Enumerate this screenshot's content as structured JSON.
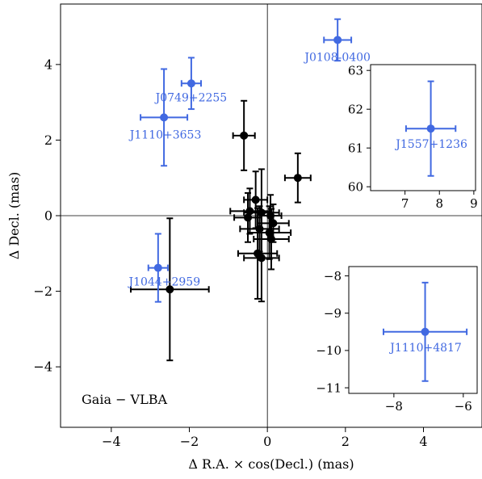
{
  "chart_data": [
    {
      "type": "scatter",
      "panel": "main",
      "xlabel": "Δ R.A. × cos(Decl.) (mas)",
      "ylabel": "Δ Decl. (mas)",
      "xlim": [
        -5.3,
        5.5
      ],
      "ylim": [
        -5.6,
        5.6
      ],
      "xticks": [
        -4,
        -2,
        0,
        2,
        4
      ],
      "yticks": [
        -4,
        -2,
        0,
        2,
        4
      ],
      "annotation": "Gaia − VLBA",
      "reference_lines": {
        "x": 0,
        "y": 0
      },
      "colors": {
        "highlight": "#4169e1",
        "default": "#000000"
      },
      "black_points": [
        {
          "x": -2.5,
          "y": -1.95,
          "xerr": 1.0,
          "yerr": 1.88
        },
        {
          "x": -0.6,
          "y": 2.12,
          "xerr": 0.28,
          "yerr": 0.92
        },
        {
          "x": 0.78,
          "y": 1.0,
          "xerr": 0.33,
          "yerr": 0.65
        },
        {
          "x": -0.3,
          "y": 0.42,
          "xerr": 0.3,
          "yerr": 0.75
        },
        {
          "x": -0.45,
          "y": 0.12,
          "xerr": 0.5,
          "yerr": 0.6
        },
        {
          "x": -0.15,
          "y": 0.08,
          "xerr": 0.45,
          "yerr": 1.15
        },
        {
          "x": 0.08,
          "y": 0.0,
          "xerr": 0.28,
          "yerr": 0.55
        },
        {
          "x": -0.5,
          "y": -0.05,
          "xerr": 0.35,
          "yerr": 0.65
        },
        {
          "x": 0.15,
          "y": -0.2,
          "xerr": 0.4,
          "yerr": 0.5
        },
        {
          "x": -0.2,
          "y": -0.35,
          "xerr": 0.5,
          "yerr": 0.6
        },
        {
          "x": 0.05,
          "y": -0.45,
          "xerr": 0.55,
          "yerr": 0.7
        },
        {
          "x": 0.1,
          "y": -0.62,
          "xerr": 0.45,
          "yerr": 0.8
        },
        {
          "x": -0.25,
          "y": -1.0,
          "xerr": 0.5,
          "yerr": 1.2
        },
        {
          "x": -0.15,
          "y": -1.12,
          "xerr": 0.45,
          "yerr": 1.15
        }
      ],
      "labeled_points": [
        {
          "label": "J0108-0400",
          "x": 1.8,
          "y": 4.65,
          "xerr": 0.35,
          "yerr": 0.55
        },
        {
          "label": "J0749+2255",
          "x": -1.95,
          "y": 3.5,
          "xerr": 0.25,
          "yerr": 0.68
        },
        {
          "label": "J1110+3653",
          "x": -2.65,
          "y": 2.6,
          "xerr": 0.6,
          "yerr": 1.28
        },
        {
          "label": "J1044+2959",
          "x": -2.8,
          "y": -1.38,
          "xerr": 0.25,
          "yerr": 0.9
        }
      ]
    },
    {
      "type": "scatter",
      "panel": "inset-upper-right",
      "xlim": [
        6.0,
        9.05
      ],
      "ylim": [
        59.9,
        63.15
      ],
      "xticks": [
        7,
        8,
        9
      ],
      "yticks": [
        60,
        61,
        62,
        63
      ],
      "labeled_points": [
        {
          "label": "J1557+1236",
          "x": 7.75,
          "y": 61.5,
          "xerr": 0.72,
          "yerr": 1.22
        }
      ]
    },
    {
      "type": "scatter",
      "panel": "inset-lower-right",
      "xlim": [
        -9.3,
        -5.6
      ],
      "ylim": [
        -11.15,
        -7.75
      ],
      "xticks": [
        -8,
        -6
      ],
      "yticks": [
        -8,
        -9,
        -10,
        -11
      ],
      "labeled_points": [
        {
          "label": "J1110+4817",
          "x": -7.1,
          "y": -9.5,
          "xerr": 1.2,
          "yerr": 1.32
        }
      ]
    }
  ]
}
